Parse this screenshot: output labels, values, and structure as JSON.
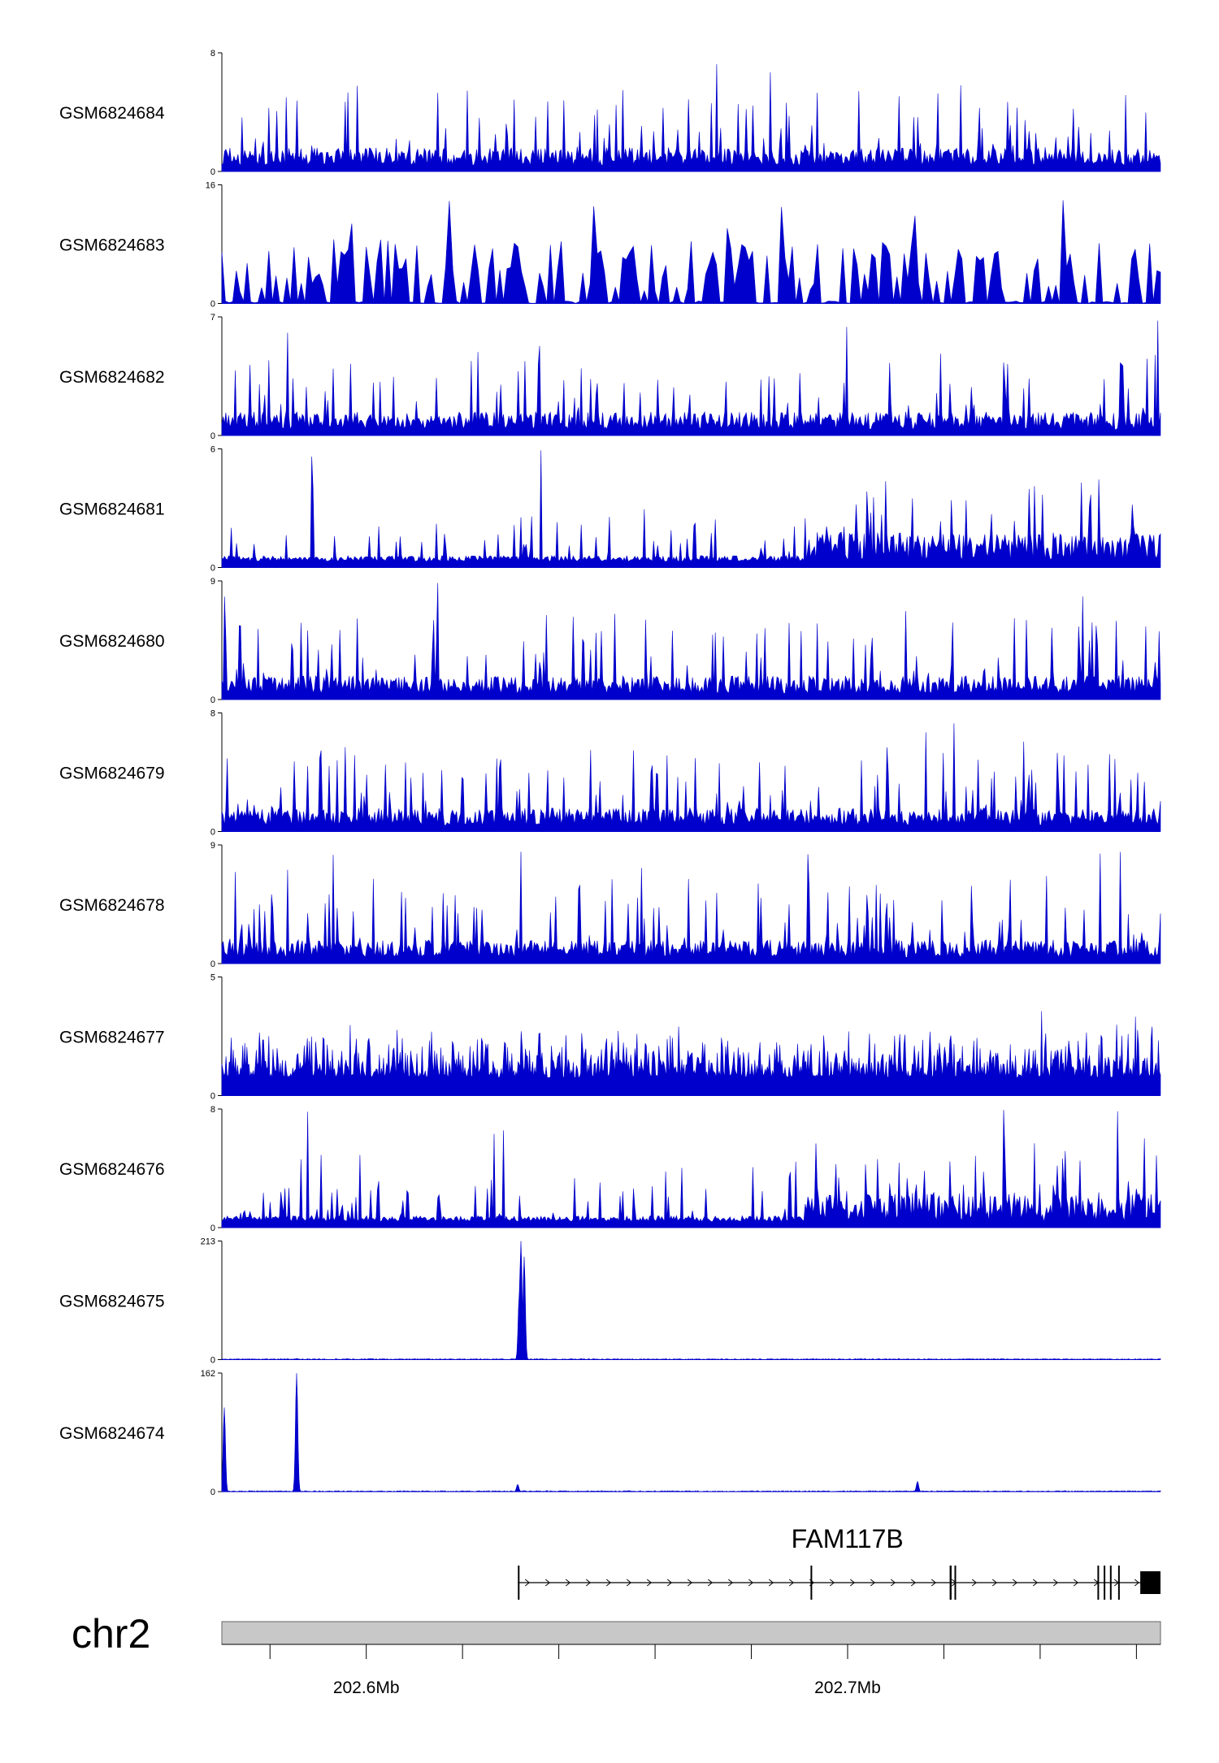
{
  "chart_data": {
    "type": "area",
    "chromosome": "chr2",
    "x_range_mb": [
      202.57,
      202.765
    ],
    "x_ticks": [
      {
        "pos_mb": 202.6,
        "label": "202.6Mb"
      },
      {
        "pos_mb": 202.7,
        "label": "202.7Mb"
      }
    ],
    "x_minor_ticks_mb": [
      202.58,
      202.62,
      202.64,
      202.66,
      202.68,
      202.72,
      202.74,
      202.76
    ],
    "color": "#0000cc",
    "tracks": [
      {
        "name": "GSM6824684",
        "ymin": 0,
        "ymax": 8,
        "profile": "noise"
      },
      {
        "name": "GSM6824683",
        "ymin": 0,
        "ymax": 16,
        "profile": "sparse"
      },
      {
        "name": "GSM6824682",
        "ymin": 0,
        "ymax": 7,
        "profile": "noise"
      },
      {
        "name": "GSM6824681",
        "ymin": 0,
        "ymax": 6,
        "profile": "rising"
      },
      {
        "name": "GSM6824680",
        "ymin": 0,
        "ymax": 9,
        "profile": "noise"
      },
      {
        "name": "GSM6824679",
        "ymin": 0,
        "ymax": 8,
        "profile": "noise"
      },
      {
        "name": "GSM6824678",
        "ymin": 0,
        "ymax": 9,
        "profile": "noise"
      },
      {
        "name": "GSM6824677",
        "ymin": 0,
        "ymax": 5,
        "profile": "dense"
      },
      {
        "name": "GSM6824676",
        "ymin": 0,
        "ymax": 8,
        "profile": "rising"
      },
      {
        "name": "GSM6824675",
        "ymin": 0,
        "ymax": 213,
        "peaks": [
          {
            "x_mb": 202.6322,
            "y": 213
          },
          {
            "x_mb": 202.6318,
            "y": 120
          },
          {
            "x_mb": 202.6328,
            "y": 185
          },
          {
            "x_mb": 202.5855,
            "y": 2
          }
        ]
      },
      {
        "name": "GSM6824674",
        "ymin": 0,
        "ymax": 162,
        "peaks": [
          {
            "x_mb": 202.5705,
            "y": 115
          },
          {
            "x_mb": 202.5855,
            "y": 162
          },
          {
            "x_mb": 202.6315,
            "y": 10
          },
          {
            "x_mb": 202.7145,
            "y": 14
          }
        ]
      }
    ],
    "genes": [
      {
        "name": "FAM117B",
        "strand": "+",
        "start_mb": 202.6315,
        "end_mb": 202.765,
        "exons_mb": [
          [
            202.6315,
            202.6318
          ],
          [
            202.6923,
            202.6926
          ],
          [
            202.7212,
            202.7216
          ],
          [
            202.7222,
            202.7225
          ],
          [
            202.7519,
            202.7521
          ],
          [
            202.7532,
            202.7534
          ],
          [
            202.7545,
            202.7548
          ],
          [
            202.7562,
            202.7564
          ],
          [
            202.7608,
            202.765
          ]
        ]
      }
    ]
  }
}
